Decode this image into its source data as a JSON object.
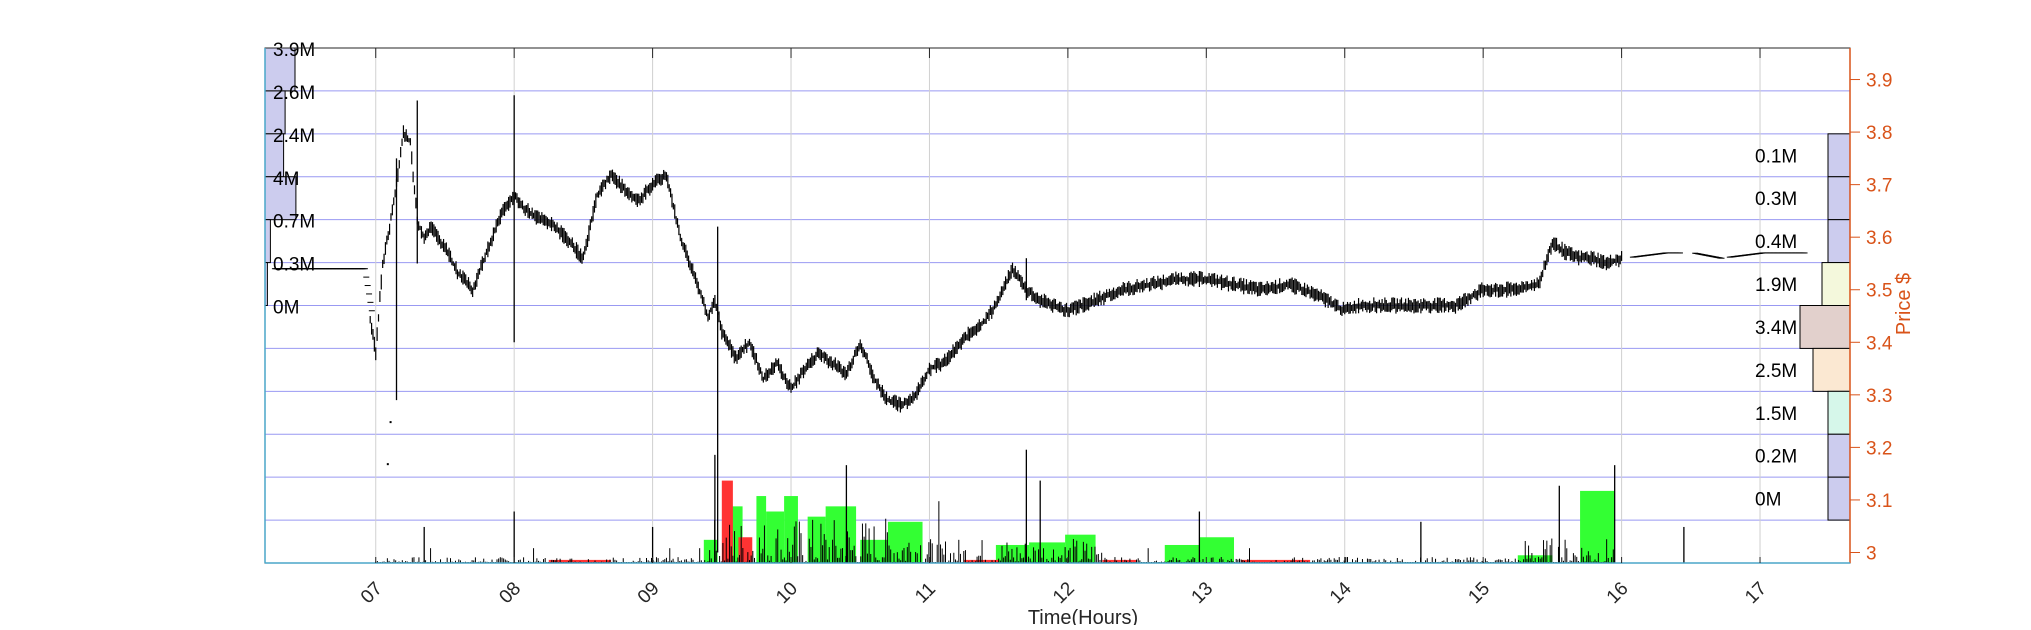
{
  "chart_data": {
    "type": "candlestick-volume-profile",
    "xlabel": "Time(Hours)",
    "ylabel": "Price $",
    "x_ticks": [
      "07",
      "08",
      "09",
      "10",
      "11",
      "12",
      "13",
      "14",
      "15",
      "16",
      "17"
    ],
    "x_range": [
      6.2,
      17.65
    ],
    "y_ticks": [
      3,
      3.1,
      3.2,
      3.3,
      3.4,
      3.5,
      3.6,
      3.7,
      3.8,
      3.9
    ],
    "ylim": [
      2.98,
      3.96
    ],
    "grid": true,
    "price_series": {
      "name": "",
      "x": [
        6.25,
        6.4,
        6.6,
        6.9,
        7.0,
        7.05,
        7.1,
        7.15,
        7.2,
        7.25,
        7.3,
        7.35,
        7.4,
        7.5,
        7.6,
        7.7,
        7.8,
        7.9,
        8.0,
        8.05,
        8.15,
        8.3,
        8.5,
        8.6,
        8.7,
        8.8,
        8.9,
        9.0,
        9.1,
        9.2,
        9.3,
        9.4,
        9.45,
        9.5,
        9.6,
        9.7,
        9.8,
        9.9,
        10.0,
        10.1,
        10.2,
        10.3,
        10.4,
        10.5,
        10.6,
        10.7,
        10.8,
        10.9,
        11.0,
        11.1,
        11.2,
        11.3,
        11.4,
        11.5,
        11.6,
        11.7,
        11.8,
        11.9,
        12.0,
        12.2,
        12.4,
        12.6,
        12.8,
        13.0,
        13.2,
        13.4,
        13.6,
        13.8,
        14.0,
        14.1,
        14.3,
        14.6,
        14.8,
        15.0,
        15.2,
        15.4,
        15.5,
        15.6,
        15.7,
        15.8,
        15.9,
        16.0,
        16.3,
        16.5,
        16.7,
        17.0,
        17.3
      ],
      "values": [
        3.54,
        3.54,
        3.54,
        3.54,
        3.38,
        3.55,
        3.62,
        3.7,
        3.8,
        3.78,
        3.63,
        3.6,
        3.62,
        3.58,
        3.53,
        3.5,
        3.57,
        3.64,
        3.68,
        3.66,
        3.64,
        3.62,
        3.56,
        3.68,
        3.72,
        3.69,
        3.67,
        3.7,
        3.72,
        3.6,
        3.53,
        3.45,
        3.48,
        3.42,
        3.37,
        3.4,
        3.33,
        3.36,
        3.31,
        3.35,
        3.38,
        3.36,
        3.34,
        3.4,
        3.33,
        3.29,
        3.28,
        3.3,
        3.35,
        3.36,
        3.39,
        3.42,
        3.44,
        3.48,
        3.54,
        3.5,
        3.48,
        3.47,
        3.46,
        3.48,
        3.5,
        3.51,
        3.52,
        3.52,
        3.51,
        3.5,
        3.51,
        3.49,
        3.46,
        3.47,
        3.47,
        3.47,
        3.47,
        3.5,
        3.5,
        3.51,
        3.59,
        3.57,
        3.56,
        3.56,
        3.55,
        3.56,
        3.57,
        3.57,
        3.56,
        3.57,
        3.57
      ]
    },
    "volume_green": [
      {
        "x0": 9.37,
        "x1": 9.47,
        "h": 0.045
      },
      {
        "x0": 9.55,
        "x1": 9.65,
        "h": 0.11
      },
      {
        "x0": 9.75,
        "x1": 9.82,
        "h": 0.13
      },
      {
        "x0": 9.82,
        "x1": 9.95,
        "h": 0.1
      },
      {
        "x0": 9.95,
        "x1": 10.05,
        "h": 0.13
      },
      {
        "x0": 10.12,
        "x1": 10.25,
        "h": 0.09
      },
      {
        "x0": 10.25,
        "x1": 10.47,
        "h": 0.11
      },
      {
        "x0": 10.5,
        "x1": 10.7,
        "h": 0.045
      },
      {
        "x0": 10.7,
        "x1": 10.95,
        "h": 0.08
      },
      {
        "x0": 11.48,
        "x1": 11.72,
        "h": 0.035
      },
      {
        "x0": 11.72,
        "x1": 11.98,
        "h": 0.04
      },
      {
        "x0": 11.98,
        "x1": 12.2,
        "h": 0.055
      },
      {
        "x0": 12.7,
        "x1": 12.95,
        "h": 0.035
      },
      {
        "x0": 12.95,
        "x1": 13.2,
        "h": 0.05
      },
      {
        "x0": 15.25,
        "x1": 15.5,
        "h": 0.015
      },
      {
        "x0": 15.7,
        "x1": 15.95,
        "h": 0.14
      }
    ],
    "volume_red": [
      {
        "x0": 9.5,
        "x1": 9.58,
        "h": 0.16
      },
      {
        "x0": 9.62,
        "x1": 9.72,
        "h": 0.05
      },
      {
        "x0": 8.25,
        "x1": 8.7,
        "h": 0.006
      },
      {
        "x0": 11.25,
        "x1": 11.5,
        "h": 0.006
      },
      {
        "x0": 12.25,
        "x1": 12.5,
        "h": 0.006
      },
      {
        "x0": 13.25,
        "x1": 13.75,
        "h": 0.006
      }
    ],
    "left_profile": [
      {
        "label": "3.9M",
        "w": 1.0
      },
      {
        "label": "2.6M",
        "w": 0.67
      },
      {
        "label": "2.4M",
        "w": 0.62
      },
      {
        "label": "4M",
        "w": 1.03
      },
      {
        "label": "0.7M",
        "w": 0.18
      },
      {
        "label": "0.3M",
        "w": 0.08
      },
      {
        "label": "0M",
        "w": 0.0
      }
    ],
    "right_profile": [
      {
        "label": "0.1M",
        "w": 0.03,
        "color": "#ccccee"
      },
      {
        "label": "0.3M",
        "w": 0.09,
        "color": "#ccccee"
      },
      {
        "label": "0.4M",
        "w": 0.12,
        "color": "#ccccee"
      },
      {
        "label": "1.9M",
        "w": 0.56,
        "color": "#f4f8dc"
      },
      {
        "label": "3.4M",
        "w": 1.0,
        "color": "#e2d0cc"
      },
      {
        "label": "2.5M",
        "w": 0.74,
        "color": "#fbe8d2"
      },
      {
        "label": "1.5M",
        "w": 0.44,
        "color": "#d6f7ea"
      },
      {
        "label": "0.2M",
        "w": 0.06,
        "color": "#ccccee"
      },
      {
        "label": "0M",
        "w": 0.0,
        "color": "#ccccee"
      }
    ],
    "colors": {
      "axis_right": "#d95319",
      "price": "#000000",
      "volume_up": "#33ff33",
      "volume_down": "#ff3333",
      "gridline": "#3b3bff",
      "profile_left": "#ccccee",
      "left_axis": "#4aa6c8"
    }
  }
}
